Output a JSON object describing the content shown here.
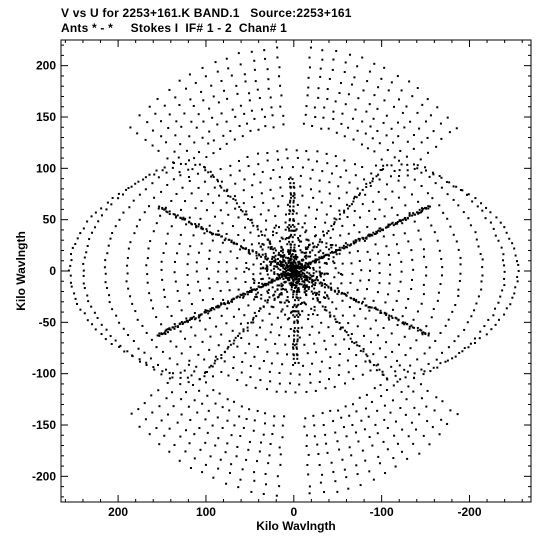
{
  "header": {
    "title_line1": "V vs U for 2253+161.K BAND.1   Source:2253+161",
    "title_line2": "Ants * - *     Stokes I  IF# 1 - 2  Chan# 1"
  },
  "chart_data": {
    "type": "scatter",
    "title": "V vs U for 2253+161.K BAND.1   Source:2253+161",
    "subtitle": "Ants * - *     Stokes I  IF# 1 - 2  Chan# 1",
    "xlabel": "Kilo Wavlngth",
    "ylabel": "Kilo Wavlngth",
    "xlim": [
      265,
      -270
    ],
    "ylim": [
      -225,
      225
    ],
    "x_ticks": [
      200,
      100,
      0,
      -100,
      -200
    ],
    "x_tick_labels": [
      "200",
      "100",
      "0",
      "-100",
      "-200"
    ],
    "y_ticks": [
      200,
      150,
      100,
      50,
      0,
      -50,
      -100,
      -150,
      -200
    ],
    "y_tick_labels": [
      "200",
      "150",
      "100",
      "50",
      "0",
      "-50",
      "-100",
      "-150",
      "-200"
    ],
    "x_inverted": true,
    "grid": false,
    "marker_color": "#000000",
    "description_of_points": "uv-coverage: symmetric elliptical tracks around origin, dense radial spokes along ~30 deg and ~-30 deg directions and along u=0, four lobes extending to about +-200 in v and +-260 in u",
    "ellipse_tracks": [
      {
        "a": 8,
        "b": 7
      },
      {
        "a": 15,
        "b": 13
      },
      {
        "a": 22,
        "b": 19
      },
      {
        "a": 30,
        "b": 26
      },
      {
        "a": 38,
        "b": 33
      },
      {
        "a": 47,
        "b": 40
      },
      {
        "a": 56,
        "b": 48
      },
      {
        "a": 66,
        "b": 56
      },
      {
        "a": 76,
        "b": 64
      },
      {
        "a": 87,
        "b": 73
      },
      {
        "a": 98,
        "b": 82
      },
      {
        "a": 110,
        "b": 92
      },
      {
        "a": 122,
        "b": 101
      },
      {
        "a": 135,
        "b": 110
      },
      {
        "a": 150,
        "b": 118
      },
      {
        "a": 168,
        "b": 124
      },
      {
        "a": 190,
        "b": 128
      },
      {
        "a": 215,
        "b": 130
      },
      {
        "a": 240,
        "b": 128
      },
      {
        "a": 255,
        "b": 120
      }
    ],
    "spokes_deg": [
      90,
      30,
      -30,
      150,
      210,
      330,
      55,
      125
    ]
  }
}
